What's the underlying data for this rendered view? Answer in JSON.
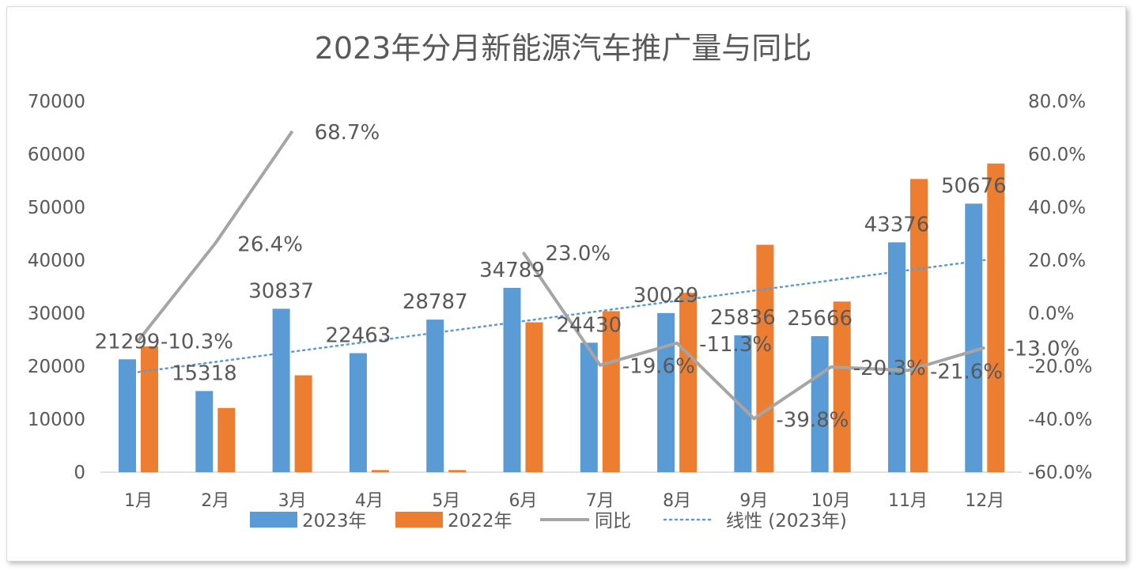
{
  "chart_data": {
    "type": "bar",
    "title": "2023年分月新能源汽车推广量与同比",
    "categories": [
      "1月",
      "2月",
      "3月",
      "4月",
      "5月",
      "6月",
      "7月",
      "8月",
      "9月",
      "10月",
      "11月",
      "12月"
    ],
    "series": [
      {
        "name": "2023年",
        "type": "bar",
        "axis": "left",
        "color": "#5b9bd5",
        "values": [
          21299,
          15318,
          30837,
          22463,
          28787,
          34789,
          24430,
          30029,
          25836,
          25666,
          43376,
          50676
        ],
        "labels": [
          "21299",
          "15318",
          "30837",
          "22463",
          "28787",
          "34789",
          "24430",
          "30029",
          "25836",
          "25666",
          "43376",
          "50676"
        ]
      },
      {
        "name": "2022年",
        "type": "bar",
        "axis": "left",
        "color": "#ed7d31",
        "values": [
          23745,
          12119,
          18279,
          400,
          400,
          28284,
          30386,
          33855,
          42917,
          32203,
          55327,
          58248
        ]
      },
      {
        "name": "同比",
        "type": "line",
        "axis": "right",
        "color": "#a5a5a5",
        "values": [
          -10.3,
          26.4,
          68.7,
          null,
          null,
          23.0,
          -19.6,
          -11.3,
          -39.8,
          -20.3,
          -21.6,
          -13.0
        ],
        "labels": [
          "-10.3%",
          "26.4%",
          "68.7%",
          null,
          null,
          "23.0%",
          "-19.6%",
          "-11.3%",
          "-39.8%",
          "-20.3%",
          "-21.6%",
          "-13.0%"
        ]
      },
      {
        "name": "线性 (2023年)",
        "type": "trendline",
        "axis": "left",
        "color": "#5b9bd5"
      }
    ],
    "left_axis": {
      "min": 0,
      "max": 70000,
      "step": 10000,
      "ticks": [
        "0",
        "10000",
        "20000",
        "30000",
        "40000",
        "50000",
        "60000",
        "70000"
      ]
    },
    "right_axis": {
      "min": -60,
      "max": 80,
      "step": 20,
      "ticks": [
        "-60.0%",
        "-40.0%",
        "-20.0%",
        "0.0%",
        "20.0%",
        "40.0%",
        "60.0%",
        "80.0%"
      ]
    },
    "legend": {
      "position": "bottom",
      "items": [
        "2023年",
        "2022年",
        "同比",
        "线性 (2023年)"
      ]
    },
    "grid": false
  }
}
